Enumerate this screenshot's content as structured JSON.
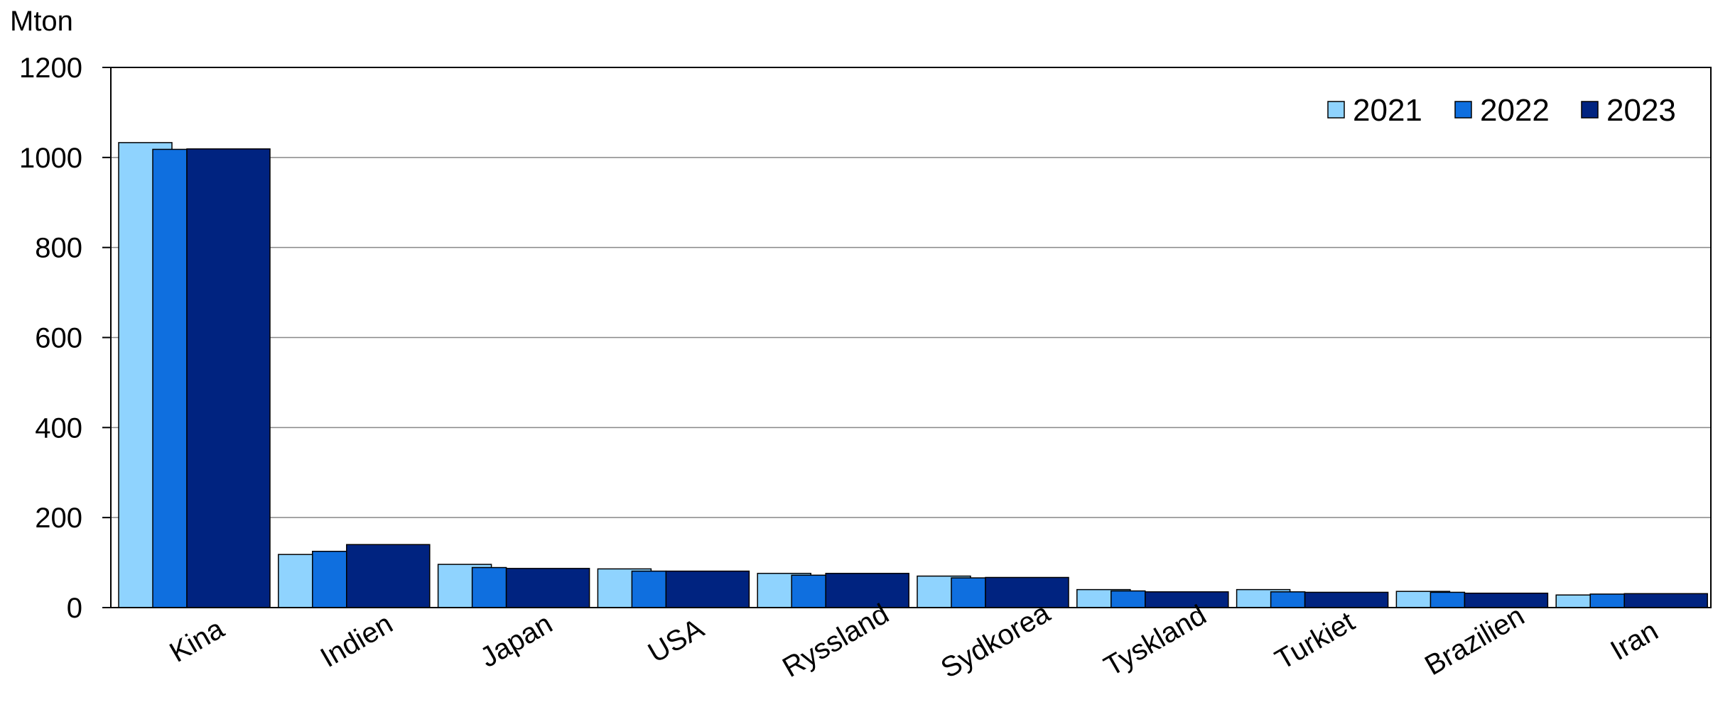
{
  "chart_data": {
    "type": "bar",
    "title": "",
    "ylabel": "Mton",
    "xlabel": "",
    "ylim": [
      0,
      1200
    ],
    "yticks": [
      0,
      200,
      400,
      600,
      800,
      1000,
      1200
    ],
    "grid": true,
    "legend_position": "top-right",
    "categories": [
      "Kina",
      "Indien",
      "Japan",
      "USA",
      "Ryssland",
      "Sydkorea",
      "Tyskland",
      "Turkiet",
      "Brazilien",
      "Iran"
    ],
    "series": [
      {
        "name": "2021",
        "color": "#8fd3fe",
        "values": [
          1033,
          118,
          96,
          86,
          76,
          70,
          40,
          40,
          36,
          28
        ]
      },
      {
        "name": "2022",
        "color": "#0f6fdf",
        "values": [
          1018,
          125,
          89,
          81,
          72,
          66,
          37,
          35,
          34,
          30
        ]
      },
      {
        "name": "2023",
        "color": "#002380",
        "values": [
          1019,
          140,
          87,
          81,
          76,
          67,
          35,
          34,
          32,
          31
        ]
      }
    ]
  }
}
